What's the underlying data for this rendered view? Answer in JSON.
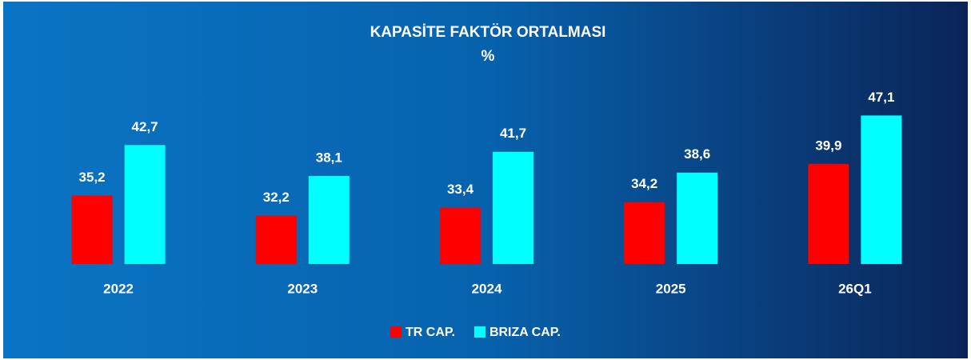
{
  "chart_data": {
    "type": "bar",
    "title": "KAPASİTE FAKTÖR ORTALMASI",
    "subtitle": "%",
    "categories": [
      "2022",
      "2023",
      "2024",
      "2025",
      "26Q1"
    ],
    "series": [
      {
        "name": "TR CAP.",
        "color": "#ff0000",
        "values": [
          35.2,
          32.2,
          33.4,
          34.2,
          39.9
        ],
        "value_labels": [
          "35,2",
          "32,2",
          "33,4",
          "34,2",
          "39,9"
        ]
      },
      {
        "name": "BRIZA CAP.",
        "color": "#00ffff",
        "values": [
          42.7,
          38.1,
          41.7,
          38.6,
          47.1
        ],
        "value_labels": [
          "42,7",
          "38,1",
          "41,7",
          "38,6",
          "47,1"
        ]
      }
    ],
    "ylim": [
      25,
      50
    ],
    "legend": "bottom"
  }
}
